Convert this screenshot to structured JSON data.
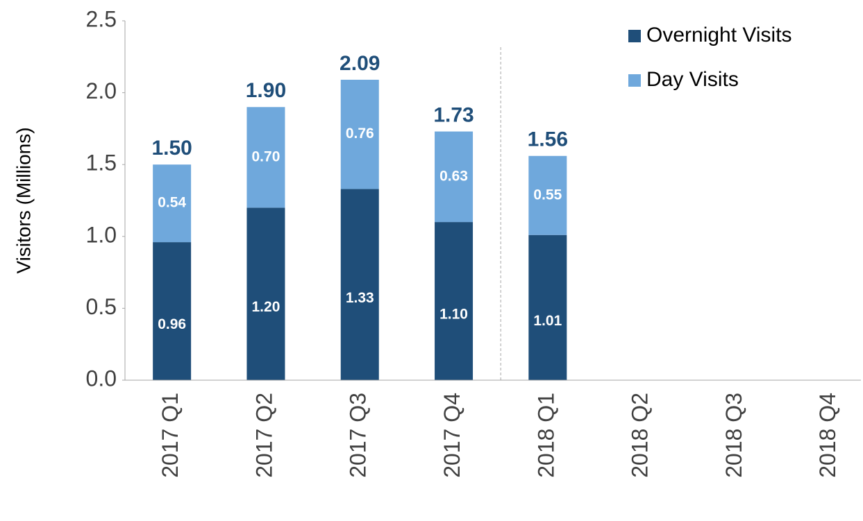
{
  "chart_data": {
    "type": "stacked_bar",
    "y_label": "Visitors (Millions)",
    "categories": [
      "2017 Q1",
      "2017 Q2",
      "2017 Q3",
      "2017 Q4",
      "2018 Q1",
      "2018 Q2",
      "2018 Q3",
      "2018 Q4"
    ],
    "series": [
      {
        "name": "Overnight Visits",
        "color": "#1f4e79",
        "values": [
          0.96,
          1.2,
          1.33,
          1.1,
          1.01,
          null,
          null,
          null
        ],
        "value_labels": [
          "0.96",
          "1.20",
          "1.33",
          "1.10",
          "1.01",
          null,
          null,
          null
        ]
      },
      {
        "name": "Day Visits",
        "color": "#6fa8dc",
        "values": [
          0.54,
          0.7,
          0.76,
          0.63,
          0.55,
          null,
          null,
          null
        ],
        "value_labels": [
          "0.54",
          "0.70",
          "0.76",
          "0.63",
          "0.55",
          null,
          null,
          null
        ]
      }
    ],
    "totals": {
      "values": [
        1.5,
        1.9,
        2.09,
        1.73,
        1.56,
        null,
        null,
        null
      ],
      "value_labels": [
        "1.50",
        "1.90",
        "2.09",
        "1.73",
        "1.56",
        null,
        null,
        null
      ]
    },
    "ylim": [
      0,
      2.5
    ],
    "yticks": [
      {
        "value": 0,
        "label": "0.0"
      },
      0.5,
      {
        "value": 1,
        "label": "1.0"
      },
      1.5,
      {
        "value": 2,
        "label": "2.0"
      },
      2.5
    ],
    "grid": false,
    "legend": "top-right"
  }
}
